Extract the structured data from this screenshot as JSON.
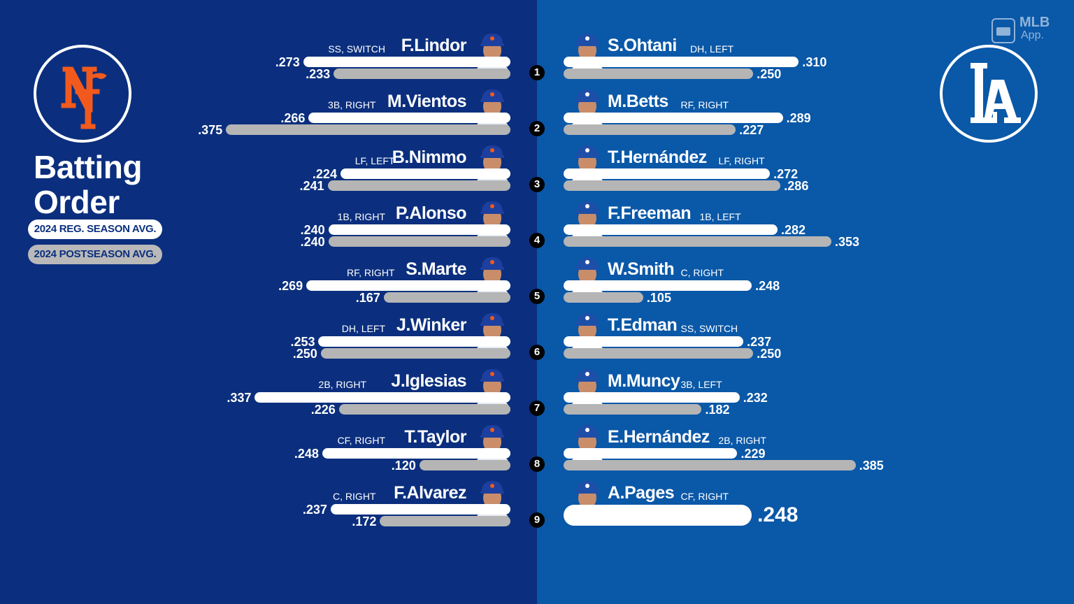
{
  "title": {
    "line1": "Batting",
    "line2": "Order"
  },
  "legend": {
    "regular": "2024 REG. SEASON AVG.",
    "postseason": "2024 POSTSEASON AVG."
  },
  "branding": {
    "app_line1": "MLB",
    "app_line2": "App."
  },
  "teams": {
    "left_logo_text": "NY",
    "right_logo_text": "LA"
  },
  "colors": {
    "mets_bg": "#0b2f7e",
    "dodgers_bg": "#0a58a8",
    "mets_orange": "#f25a1d",
    "regular_bar": "#ffffff",
    "postseason_bar": "#b5b5b5"
  },
  "chart_data": {
    "type": "bar",
    "categories": [
      "1",
      "2",
      "3",
      "4",
      "5",
      "6",
      "7",
      "8",
      "9"
    ],
    "mets": [
      {
        "order": "1",
        "name": "F.Lindor",
        "pos": "SS, SWITCH",
        "reg": ".273",
        "post": ".233"
      },
      {
        "order": "2",
        "name": "M.Vientos",
        "pos": "3B, RIGHT",
        "reg": ".266",
        "post": ".375"
      },
      {
        "order": "3",
        "name": "B.Nimmo",
        "pos": "LF, LEFT",
        "reg": ".224",
        "post": ".241"
      },
      {
        "order": "4",
        "name": "P.Alonso",
        "pos": "1B, RIGHT",
        "reg": ".240",
        "post": ".240"
      },
      {
        "order": "5",
        "name": "S.Marte",
        "pos": "RF, RIGHT",
        "reg": ".269",
        "post": ".167"
      },
      {
        "order": "6",
        "name": "J.Winker",
        "pos": "DH, LEFT",
        "reg": ".253",
        "post": ".250"
      },
      {
        "order": "7",
        "name": "J.Iglesias",
        "pos": "2B, RIGHT",
        "reg": ".337",
        "post": ".226"
      },
      {
        "order": "8",
        "name": "T.Taylor",
        "pos": "CF, RIGHT",
        "reg": ".248",
        "post": ".120"
      },
      {
        "order": "9",
        "name": "F.Alvarez",
        "pos": "C, RIGHT",
        "reg": ".237",
        "post": ".172"
      }
    ],
    "dodgers": [
      {
        "order": "1",
        "name": "S.Ohtani",
        "pos": "DH, LEFT",
        "reg": ".310",
        "post": ".250"
      },
      {
        "order": "2",
        "name": "M.Betts",
        "pos": "RF, RIGHT",
        "reg": ".289",
        "post": ".227"
      },
      {
        "order": "3",
        "name": "T.Hernández",
        "pos": "LF, RIGHT",
        "reg": ".272",
        "post": ".286"
      },
      {
        "order": "4",
        "name": "F.Freeman",
        "pos": "1B, LEFT",
        "reg": ".282",
        "post": ".353"
      },
      {
        "order": "5",
        "name": "W.Smith",
        "pos": "C, RIGHT",
        "reg": ".248",
        "post": ".105"
      },
      {
        "order": "6",
        "name": "T.Edman",
        "pos": "SS, SWITCH",
        "reg": ".237",
        "post": ".250"
      },
      {
        "order": "7",
        "name": "M.Muncy",
        "pos": "3B, LEFT",
        "reg": ".232",
        "post": ".182"
      },
      {
        "order": "8",
        "name": "E.Hernández",
        "pos": "2B, RIGHT",
        "reg": ".229",
        "post": ".385"
      },
      {
        "order": "9",
        "name": "A.Pages",
        "pos": "CF, RIGHT",
        "reg": ".248",
        "post": null
      }
    ]
  }
}
